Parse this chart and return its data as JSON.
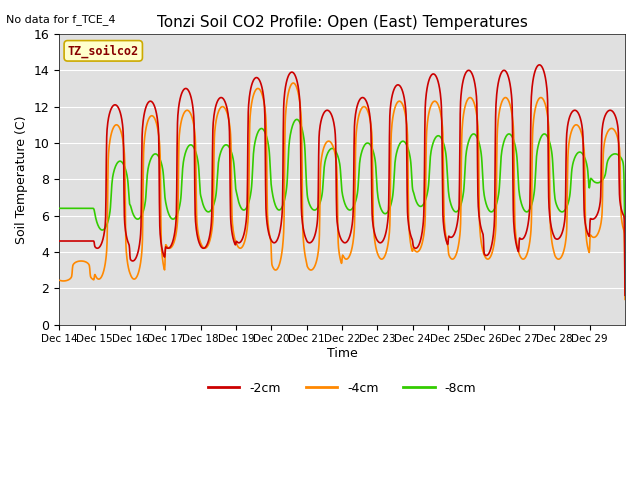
{
  "title": "Tonzi Soil CO2 Profile: Open (East) Temperatures",
  "subtitle": "No data for f_TCE_4",
  "ylabel": "Soil Temperature (C)",
  "xlabel": "Time",
  "ylim": [
    0,
    16
  ],
  "yticks": [
    0,
    2,
    4,
    6,
    8,
    10,
    12,
    14,
    16
  ],
  "legend_label": "TZ_soilco2",
  "series_labels": [
    "-2cm",
    "-4cm",
    "-8cm"
  ],
  "series_colors": [
    "#cc0000",
    "#ff8800",
    "#33cc00"
  ],
  "background_color": "#e0e0e0",
  "xtick_labels": [
    "Dec 14",
    "Dec 15",
    "Dec 16",
    "Dec 17",
    "Dec 18",
    "Dec 19",
    "Dec 20",
    "Dec 21",
    "Dec 22",
    "Dec 23",
    "Dec 24",
    "Dec 25",
    "Dec 26",
    "Dec 27",
    "Dec 28",
    "Dec 29"
  ],
  "n_days": 16,
  "points_per_day": 96,
  "peak_2cm": [
    4.6,
    12.1,
    12.3,
    13.0,
    12.5,
    13.6,
    13.9,
    11.8,
    12.5,
    13.2,
    13.8,
    14.0,
    14.0,
    14.3,
    11.8,
    11.8
  ],
  "trough_2cm": [
    4.6,
    4.2,
    3.5,
    4.2,
    4.2,
    4.5,
    4.5,
    4.5,
    4.5,
    4.5,
    4.2,
    4.8,
    3.8,
    4.7,
    4.7,
    5.8
  ],
  "peak_4cm": [
    3.5,
    11.0,
    11.5,
    11.8,
    12.0,
    13.0,
    13.3,
    10.1,
    12.0,
    12.3,
    12.3,
    12.5,
    12.5,
    12.5,
    11.0,
    10.8
  ],
  "trough_4cm": [
    2.4,
    2.5,
    2.5,
    4.2,
    4.2,
    4.2,
    3.0,
    3.0,
    3.6,
    3.6,
    4.0,
    3.6,
    3.6,
    3.6,
    3.6,
    4.8
  ],
  "peak_8cm": [
    6.4,
    9.0,
    9.4,
    9.9,
    9.9,
    10.8,
    11.3,
    9.7,
    10.0,
    10.1,
    10.4,
    10.5,
    10.5,
    10.5,
    9.5,
    9.4
  ],
  "trough_8cm": [
    6.4,
    5.2,
    5.8,
    5.8,
    6.2,
    6.3,
    6.3,
    6.3,
    6.3,
    6.1,
    6.5,
    6.2,
    6.2,
    6.2,
    6.2,
    7.8
  ],
  "peak_time_2cm": 0.58,
  "peak_time_4cm": 0.62,
  "peak_time_8cm": 0.72,
  "sharpness_2cm": 4.5,
  "sharpness_4cm": 4.0,
  "sharpness_8cm": 2.2
}
